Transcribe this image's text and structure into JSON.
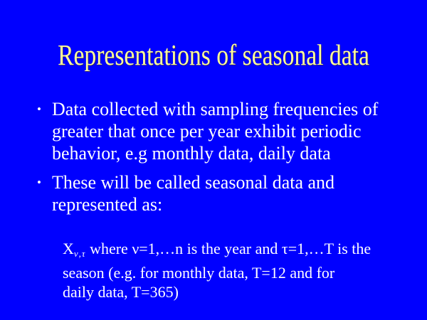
{
  "slide": {
    "colors": {
      "background": "#0000FF",
      "title_text": "#FFFF99",
      "body_text": "#FFFFFF"
    },
    "title": "Representations of seasonal data",
    "bullet_glyph": "•",
    "bullets": [
      "Data collected with sampling frequencies of\ngreater that once per year exhibit periodic\nbehavior, e.g monthly data, daily data",
      "These will be called seasonal data and\nrepresented as:"
    ],
    "formula": {
      "base": "X",
      "subscript": "ν,τ",
      "rest": " where ν=1,…n is the year and τ=1,…T is the\nseason (e.g. for monthly data, T=12 and for\ndaily data, T=365)"
    }
  }
}
